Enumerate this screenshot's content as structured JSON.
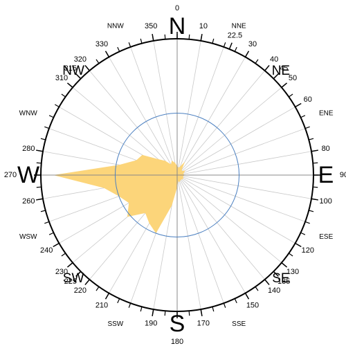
{
  "chart_data": {
    "type": "polar-area",
    "theta": [
      0,
      10,
      20,
      30,
      40,
      50,
      60,
      70,
      80,
      90,
      100,
      110,
      120,
      130,
      140,
      150,
      160,
      170,
      180,
      190,
      200,
      210,
      220,
      230,
      240,
      250,
      260,
      270,
      280,
      290,
      300,
      310,
      320,
      330,
      340,
      350
    ],
    "values": [
      1.5,
      1.2,
      1.5,
      2.5,
      1.2,
      1,
      1.5,
      1.2,
      1,
      1.2,
      1,
      1,
      1.2,
      1,
      1,
      1,
      1.2,
      1,
      2,
      5,
      10,
      9,
      8,
      10.5,
      9,
      10,
      12,
      20,
      9.5,
      7,
      6.5,
      4,
      3,
      2,
      2.5,
      2
    ],
    "color": "#fcd57a",
    "rlim": [
      0,
      22
    ],
    "rticks": [
      10
    ],
    "ring_color": "#4a7fc0",
    "thetaticks": [
      0,
      10,
      22.5,
      30,
      40,
      45,
      50,
      60,
      80,
      90,
      100,
      120,
      130,
      135,
      140,
      150,
      170,
      180,
      190,
      210,
      220,
      225,
      230,
      240,
      260,
      270,
      280,
      310,
      315,
      320,
      330,
      350
    ],
    "direction_labels": [
      {
        "value": 0,
        "label": "N"
      },
      {
        "value": 22.5,
        "label": "NNE"
      },
      {
        "value": 45,
        "label": "NE"
      },
      {
        "value": 67.5,
        "label": "ENE"
      },
      {
        "value": 90,
        "label": "E"
      },
      {
        "value": 112.5,
        "label": "ESE"
      },
      {
        "value": 135,
        "label": "SE"
      },
      {
        "value": 157.5,
        "label": "SSE"
      },
      {
        "value": 180,
        "label": "S"
      },
      {
        "value": 202.5,
        "label": "SSW"
      },
      {
        "value": 225,
        "label": "SW"
      },
      {
        "value": 247.5,
        "label": "WSW"
      },
      {
        "value": 270,
        "label": "W"
      },
      {
        "value": 292.5,
        "label": "WNW"
      },
      {
        "value": 315,
        "label": "NW"
      },
      {
        "value": 337.5,
        "label": "NNW"
      }
    ],
    "grid": true
  }
}
